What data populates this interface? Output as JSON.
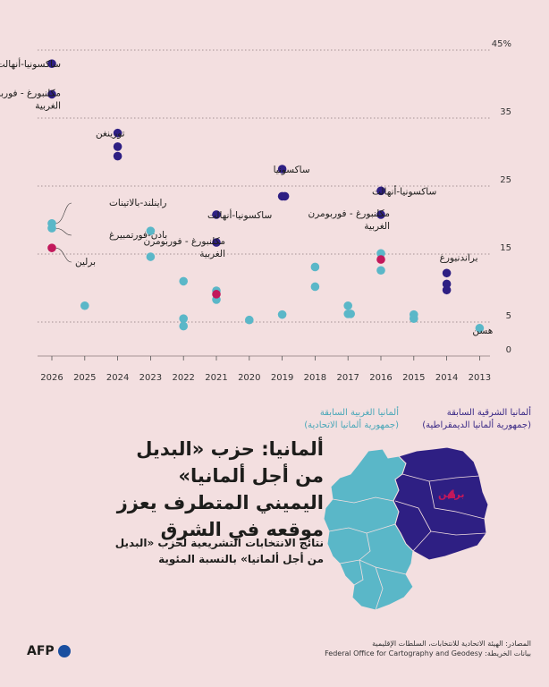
{
  "title": "ألمانيا: حزب «البديل من أجل ألمانيا» اليميني المتطرف يعزز موقعه في الشرق",
  "subtitle": "نتائج الانتخابات التشريعية لحزب «البديل من أجل ألمانيا» بالنسبة المئوية",
  "legend": {
    "east_line1": "ألمانيا الشرقية السابقة",
    "east_line2": "(جمهورية ألمانيا الديمقراطية)",
    "west_line1": "ألمانيا الغربية السابقة",
    "west_line2": "(جمهورية ألمانيا الاتحادية)"
  },
  "map": {
    "berlin_label": "برلين"
  },
  "source": {
    "line1": "المصادر: الهيئة الاتحادية للانتخابات، السلطات الإقليمية",
    "line2": "بيانات الخريطة: Federal Office for Cartography and Geodesy"
  },
  "logo": "AFP",
  "colors": {
    "east": "#2e1f83",
    "west": "#5ab7c8",
    "berlin": "#c2185b",
    "background": "#f3dfe0"
  },
  "chart_data": {
    "type": "scatter",
    "title": "",
    "xlabel": "",
    "ylabel": "",
    "categories": [
      "2026",
      "2025",
      "2024",
      "2023",
      "2022",
      "2021",
      "2020",
      "2019",
      "2018",
      "2017",
      "2016",
      "2015",
      "2014",
      "2013"
    ],
    "x_order": "descending-left-to-right",
    "y_ticks": [
      0,
      5,
      15,
      25,
      35,
      45
    ],
    "y_tick_labels": [
      "0",
      "5",
      "15",
      "25",
      "35",
      "45%"
    ],
    "ylim": [
      0,
      45
    ],
    "grid": "dotted horizontal lines",
    "series": [
      {
        "name": "ألمانيا الشرقية السابقة",
        "color": "east",
        "points": [
          {
            "x": "2026",
            "y": 43.0
          },
          {
            "x": "2026",
            "y": 38.5
          },
          {
            "x": "2024",
            "y": 32.8
          },
          {
            "x": "2024",
            "y": 30.8
          },
          {
            "x": "2024",
            "y": 29.4
          },
          {
            "x": "2021",
            "y": 20.8
          },
          {
            "x": "2021",
            "y": 16.7
          },
          {
            "x": "2019",
            "y": 27.5
          },
          {
            "x": "2019",
            "y": 23.5
          },
          {
            "x": "2019",
            "y": 23.5
          },
          {
            "x": "2016",
            "y": 24.3
          },
          {
            "x": "2016",
            "y": 20.8
          },
          {
            "x": "2014",
            "y": 12.2
          },
          {
            "x": "2014",
            "y": 10.6
          },
          {
            "x": "2014",
            "y": 9.7
          }
        ]
      },
      {
        "name": "ألمانيا الغربية السابقة",
        "color": "west",
        "points": [
          {
            "x": "2026",
            "y": 19.5
          },
          {
            "x": "2026",
            "y": 18.8
          },
          {
            "x": "2025",
            "y": 7.4
          },
          {
            "x": "2023",
            "y": 18.4
          },
          {
            "x": "2023",
            "y": 14.6
          },
          {
            "x": "2022",
            "y": 11.0
          },
          {
            "x": "2022",
            "y": 5.5
          },
          {
            "x": "2022",
            "y": 4.4
          },
          {
            "x": "2021",
            "y": 9.6
          },
          {
            "x": "2021",
            "y": 8.3
          },
          {
            "x": "2020",
            "y": 5.3
          },
          {
            "x": "2019",
            "y": 6.1
          },
          {
            "x": "2018",
            "y": 13.1
          },
          {
            "x": "2018",
            "y": 10.2
          },
          {
            "x": "2017",
            "y": 7.4
          },
          {
            "x": "2017",
            "y": 6.2
          },
          {
            "x": "2017",
            "y": 6.2
          },
          {
            "x": "2016",
            "y": 15.1
          },
          {
            "x": "2016",
            "y": 12.6
          },
          {
            "x": "2015",
            "y": 6.1
          },
          {
            "x": "2015",
            "y": 5.5
          },
          {
            "x": "2013",
            "y": 4.1
          }
        ]
      },
      {
        "name": "برلين",
        "color": "berlin",
        "points": [
          {
            "x": "2026",
            "y": 15.9
          },
          {
            "x": "2021",
            "y": 9.1
          },
          {
            "x": "2016",
            "y": 14.2
          }
        ]
      }
    ],
    "annotations": [
      {
        "text": "ساكسونيا-أنهالت",
        "x": "2026",
        "y": 43.0
      },
      {
        "text": "مكلنبورغ - فوربومرن",
        "text2": "الغربية",
        "x": "2026",
        "y": 38.5
      },
      {
        "text": "تورينغن",
        "x": "2024",
        "y": 32.8
      },
      {
        "text": "ساكسونيا",
        "x": "2019",
        "y": 27.5
      },
      {
        "text": "ساكسونيا-أنهالت",
        "x": "2016",
        "y": 24.3
      },
      {
        "text": "ساكسونيا-أنهالت",
        "x": "2021",
        "y": 20.8
      },
      {
        "text": "مكلنبورغ - فوربومرن",
        "text2": "الغربية",
        "x": "2016",
        "y": 20.8
      },
      {
        "text": "مكلنبورغ - فوربومرن",
        "text2": "الغربية",
        "x": "2021",
        "y": 16.7
      },
      {
        "text": "راينلند-بالاتينات",
        "x": "2026",
        "y": 19.5
      },
      {
        "text": "بادن-فورتمبيرغ",
        "x": "2026",
        "y": 18.8
      },
      {
        "text": "برلين",
        "x": "2026",
        "y": 15.9
      },
      {
        "text": "براندنبورغ",
        "x": "2014",
        "y": 12.2
      },
      {
        "text": "هسن",
        "x": "2013",
        "y": 4.1
      }
    ]
  }
}
